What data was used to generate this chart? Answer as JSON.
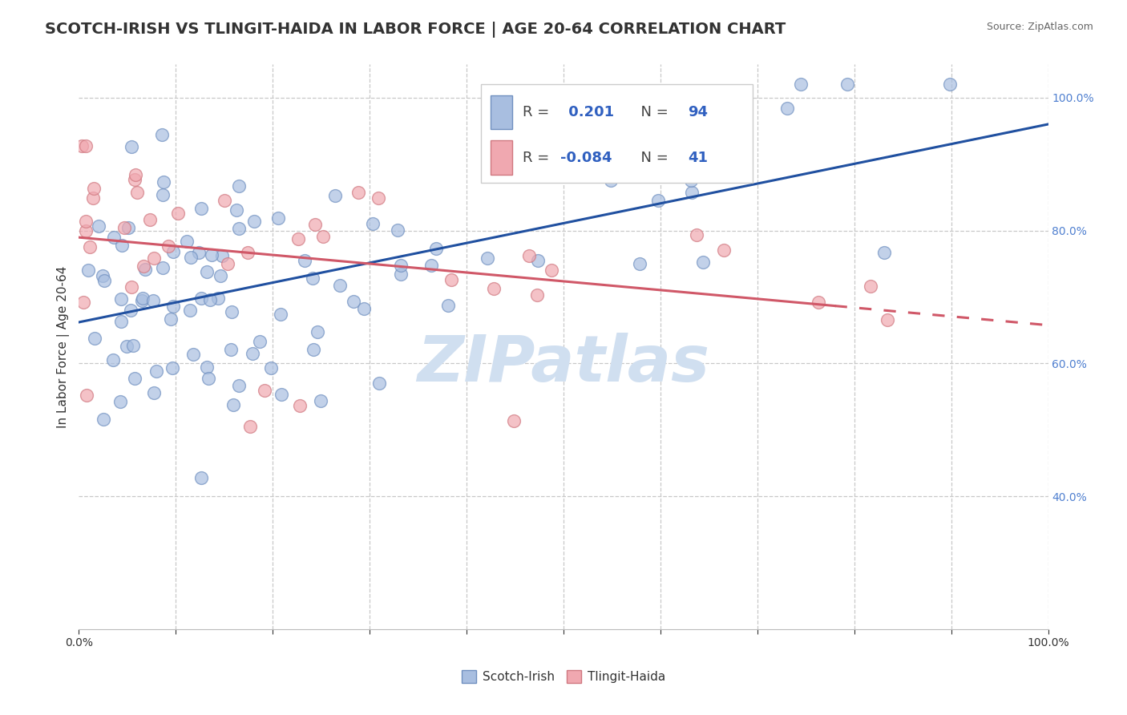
{
  "title": "SCOTCH-IRISH VS TLINGIT-HAIDA IN LABOR FORCE | AGE 20-64 CORRELATION CHART",
  "source": "Source: ZipAtlas.com",
  "ylabel": "In Labor Force | Age 20-64",
  "legend_label1": "Scotch-Irish",
  "legend_label2": "Tlingit-Haida",
  "r1": 0.201,
  "n1": 94,
  "r2": -0.084,
  "n2": 41,
  "blue_color": "#A8BEE0",
  "pink_color": "#F0A8B0",
  "blue_edge_color": "#7090C0",
  "pink_edge_color": "#D07880",
  "blue_line_color": "#2050A0",
  "pink_line_color": "#D05868",
  "watermark": "ZIPatlas",
  "watermark_color": "#D0DFF0",
  "background_color": "#FFFFFF",
  "grid_color": "#C8C8C8",
  "xlim": [
    0,
    1
  ],
  "ylim": [
    0.2,
    1.05
  ],
  "yticks": [
    0.4,
    0.6,
    0.8,
    1.0
  ],
  "ytick_labels": [
    "40.0%",
    "60.0%",
    "80.0%",
    "100.0%"
  ],
  "xtick_labels_show": [
    "0.0%",
    "100.0%"
  ],
  "title_color": "#333333",
  "source_color": "#666666",
  "ylabel_color": "#333333",
  "ytick_color": "#5080D0",
  "xtick_color": "#333333"
}
